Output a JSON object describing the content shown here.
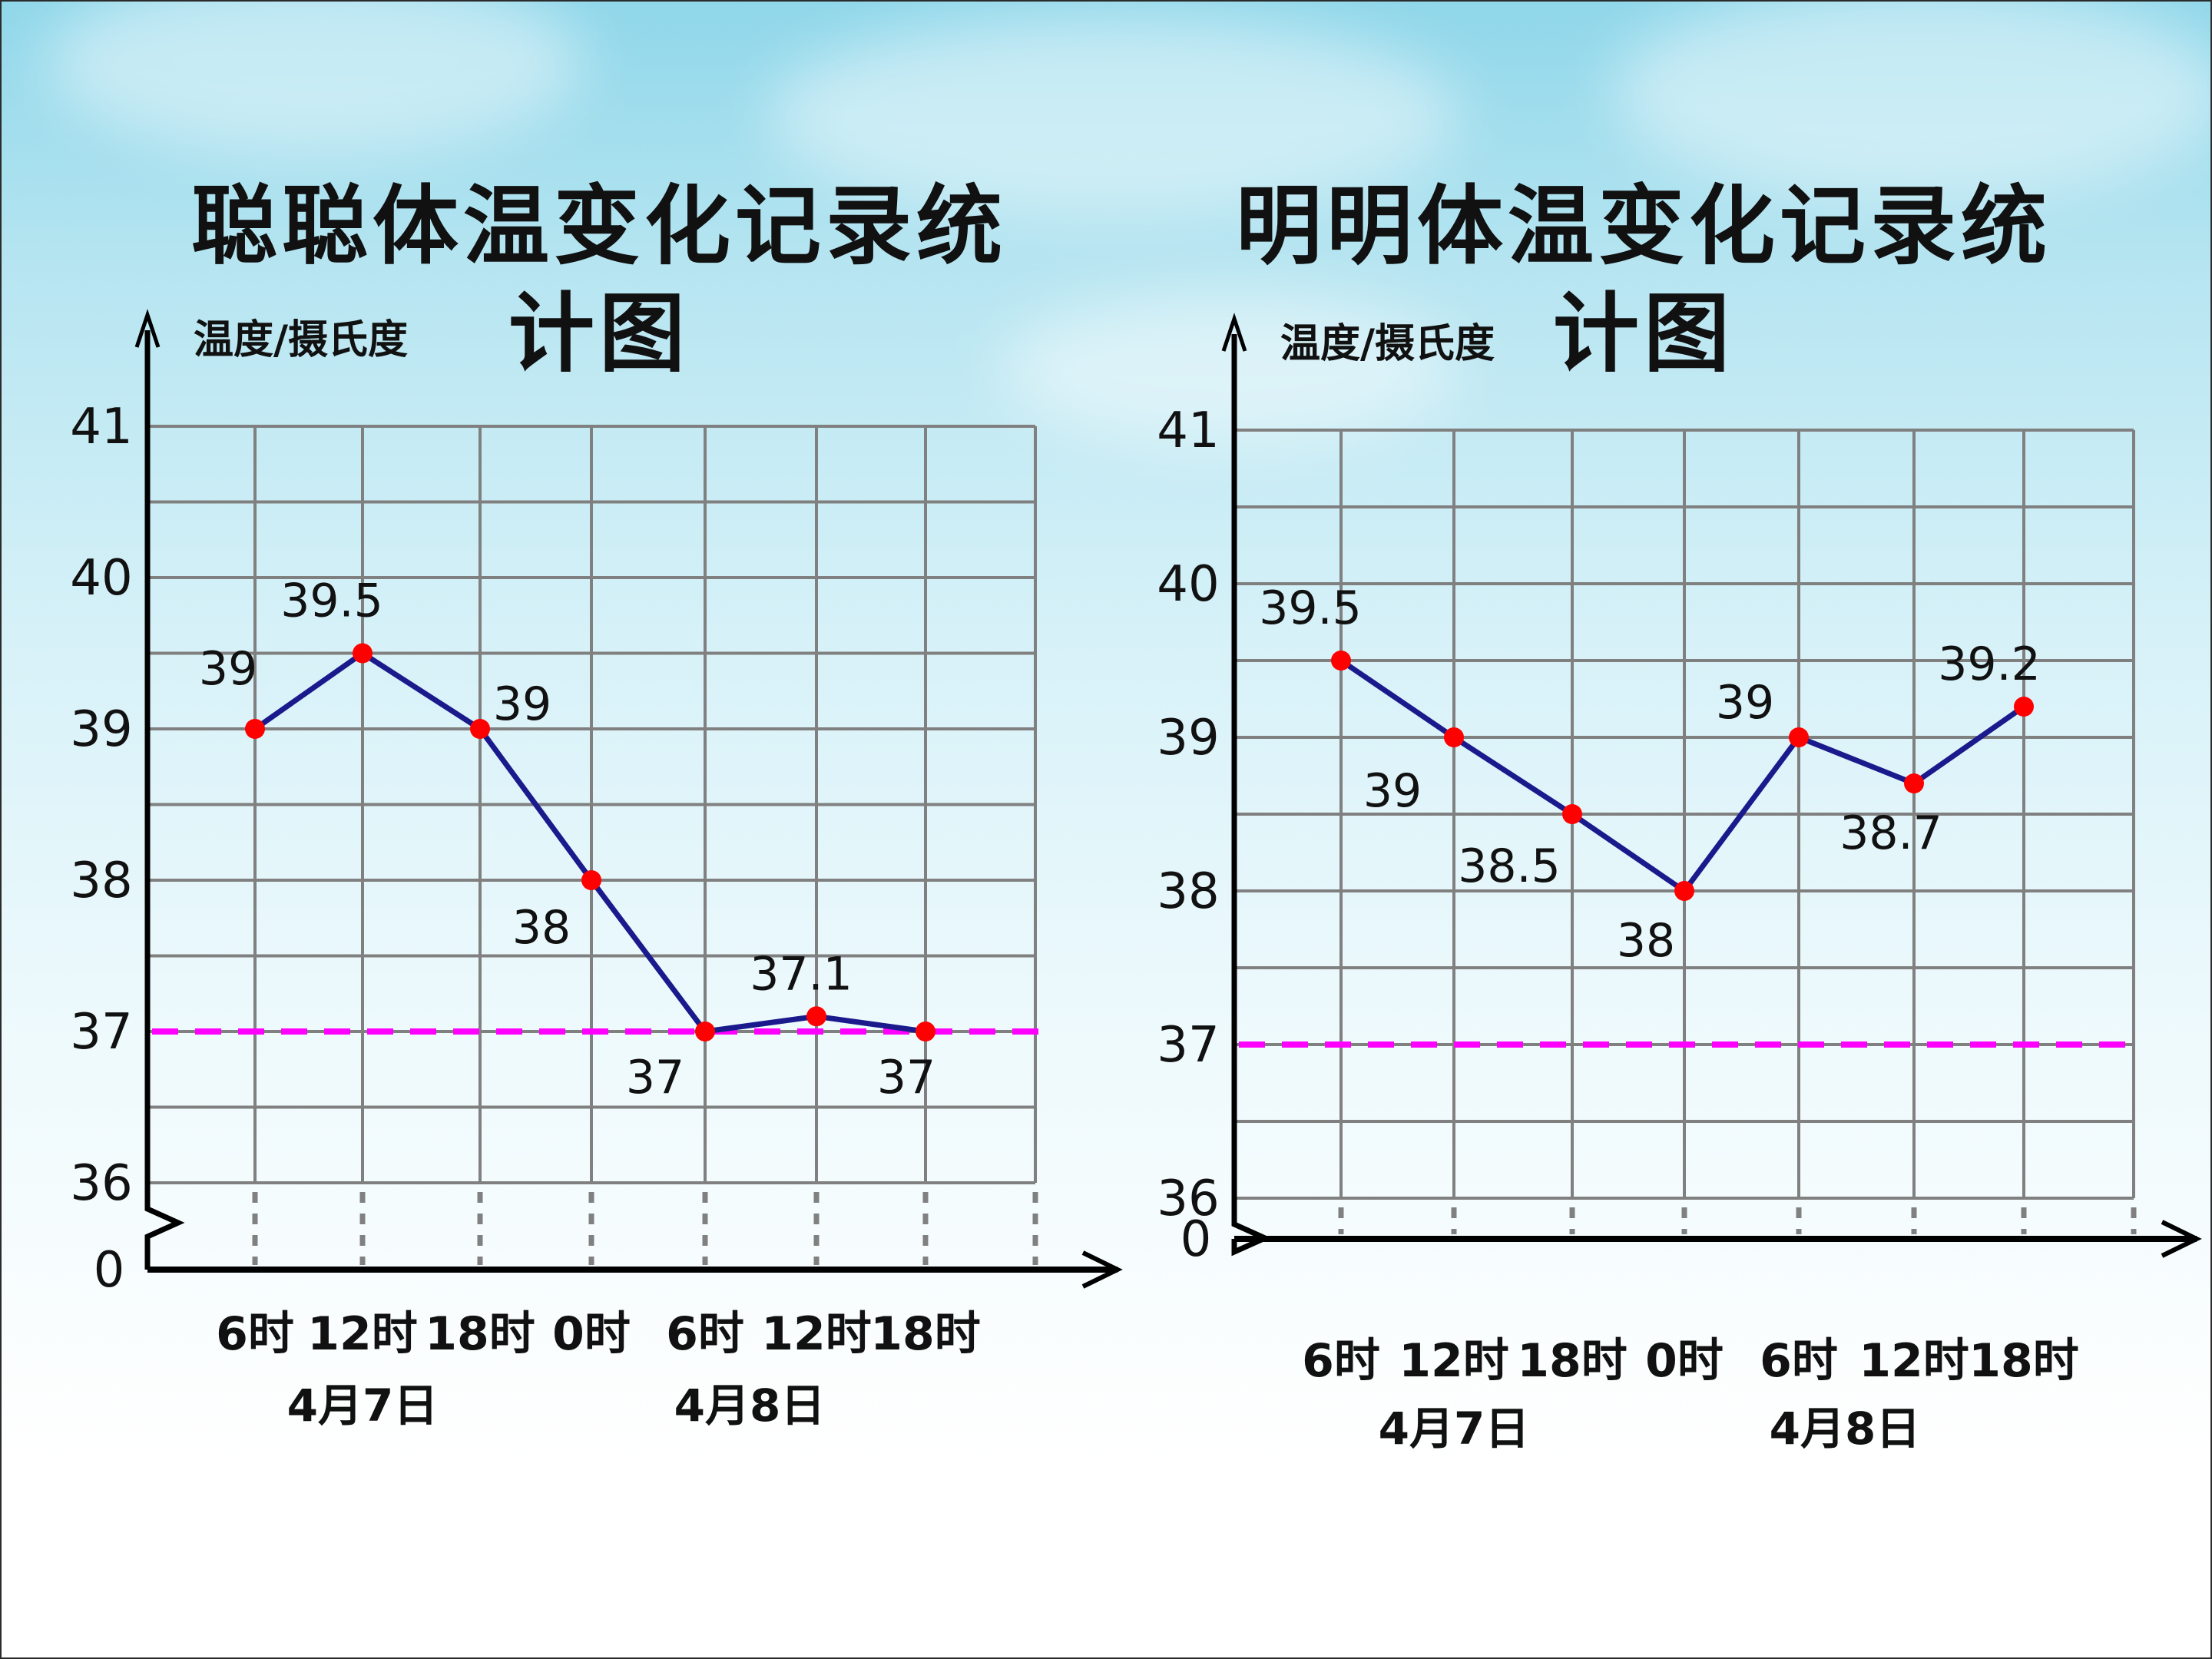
{
  "chart_data": [
    {
      "type": "line",
      "title": "聪聪体温变化记录统计图",
      "ylabel": "温度/摄氏度",
      "ylim": [
        36,
        41
      ],
      "y_origin_label": "0",
      "y_ticks": [
        36,
        37,
        38,
        39,
        40,
        41
      ],
      "categories": [
        "6时",
        "12时",
        "18时",
        "0时",
        "6时",
        "12时",
        "18时"
      ],
      "date_labels": [
        {
          "text": "4月7日",
          "under_category": 1
        },
        {
          "text": "4月8日",
          "under_category": 4.4
        }
      ],
      "series": [
        {
          "values": [
            39,
            39.5,
            39,
            38,
            37,
            37.1,
            37
          ],
          "labels": [
            "39",
            "39.5",
            "39",
            "38",
            "37",
            "37.1",
            "37"
          ]
        }
      ],
      "reference_line": 37,
      "grid": true
    },
    {
      "type": "line",
      "title": "明明体温变化记录统计图",
      "ylabel": "温度/摄氏度",
      "ylim": [
        36,
        41
      ],
      "y_origin_label": "0",
      "y_ticks": [
        36,
        37,
        38,
        39,
        40,
        41
      ],
      "categories": [
        "6时",
        "12时",
        "18时",
        "0时",
        "6时",
        "12时",
        "18时"
      ],
      "date_labels": [
        {
          "text": "4月7日",
          "under_category": 1
        },
        {
          "text": "4月8日",
          "under_category": 4.4
        }
      ],
      "series": [
        {
          "values": [
            39.5,
            39,
            38.5,
            38,
            39,
            38.7,
            39.2
          ],
          "labels": [
            "39.5",
            "39",
            "38.5",
            "38",
            "39",
            "38.7",
            "39.2"
          ]
        }
      ],
      "reference_line": 37,
      "grid": true
    }
  ],
  "colors": {
    "line": "#1a1a8c",
    "point": "#ff0000",
    "reference": "#ff00ff",
    "grid": "#808080",
    "axis": "#000000",
    "text": "#111111"
  }
}
